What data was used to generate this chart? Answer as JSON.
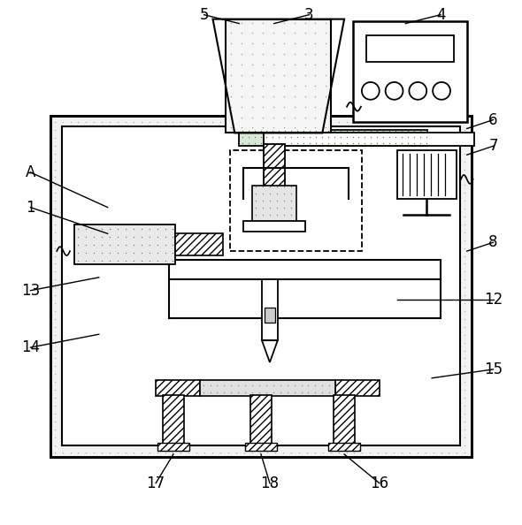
{
  "bg_color": "#ffffff",
  "line_color": "#000000",
  "figsize": [
    5.9,
    5.94
  ],
  "dpi": 100,
  "label_fontsize": 12
}
